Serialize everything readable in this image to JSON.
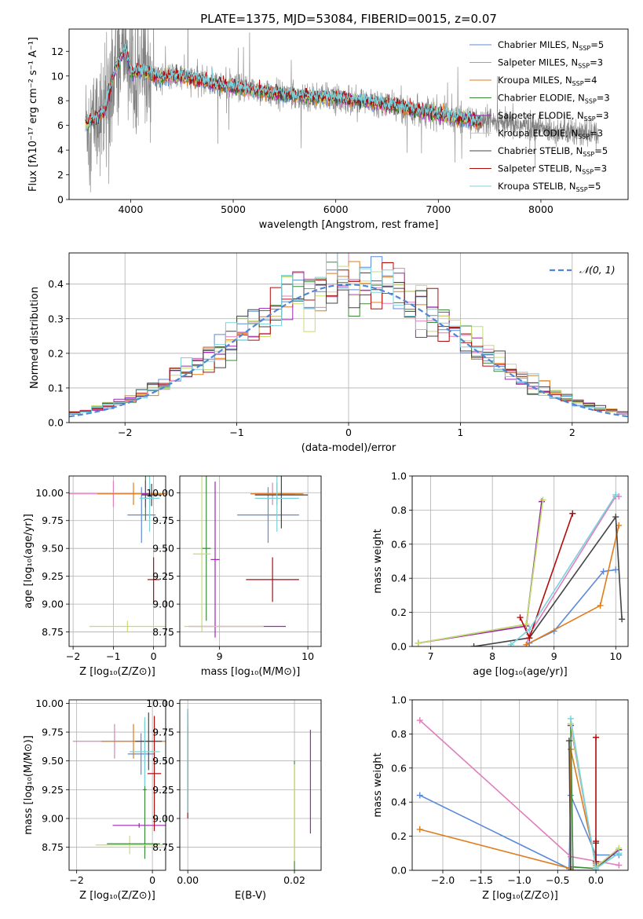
{
  "title": "PLATE=1375, MJD=53084, FIBERID=0015, z=0.07",
  "colors": {
    "chabrier_miles": "#5b8ad8",
    "salpeter_miles": "#e07fbd",
    "kroupa_miles": "#e07b1c",
    "chabrier_elodie": "#3a8a3a",
    "salpeter_elodie": "#9c27b0",
    "kroupa_elodie": "#c8dc6e",
    "chabrier_stelib": "#444444",
    "salpeter_stelib": "#b00c0c",
    "kroupa_stelib": "#79d2dc",
    "data": "#7f7f7f",
    "normal": "#4f86d6"
  },
  "chart_data": [
    {
      "id": "spectrum",
      "type": "line",
      "xlabel": "wavelength [Angstrom, rest frame]",
      "ylabel": "Flux [fλ10⁻¹⁷ erg cm⁻² s⁻¹ A⁻¹]",
      "xlim": [
        3400,
        8850
      ],
      "ylim": [
        0,
        13.8
      ],
      "xticks": [
        4000,
        5000,
        6000,
        7000,
        8000
      ],
      "yticks": [
        0,
        2,
        4,
        6,
        8,
        10,
        12
      ],
      "grid": false,
      "legend": "top-right",
      "legend_entries": [
        {
          "key": "chabrier_miles",
          "label": "Chabrier MILES, N",
          "sub": "SSP",
          "tail": "=5"
        },
        {
          "key": "salpeter_miles",
          "label": "Salpeter MILES, N",
          "sub": "SSP",
          "tail": "=3"
        },
        {
          "key": "kroupa_miles",
          "label": "Kroupa MILES, N",
          "sub": "SSP",
          "tail": "=4"
        },
        {
          "key": "chabrier_elodie",
          "label": "Chabrier ELODIE, N",
          "sub": "SSP",
          "tail": "=3"
        },
        {
          "key": "salpeter_elodie",
          "label": "Salpeter ELODIE, N",
          "sub": "SSP",
          "tail": "=3"
        },
        {
          "key": "kroupa_elodie",
          "label": "Kroupa ELODIE, N",
          "sub": "SSP",
          "tail": "=3"
        },
        {
          "key": "chabrier_stelib",
          "label": "Chabrier STELIB, N",
          "sub": "SSP",
          "tail": "=5"
        },
        {
          "key": "salpeter_stelib",
          "label": "Salpeter STELIB, N",
          "sub": "SSP",
          "tail": "=3"
        },
        {
          "key": "kroupa_stelib",
          "label": "Kroupa STELIB, N",
          "sub": "SSP",
          "tail": "=5"
        }
      ],
      "continuum": {
        "x": [
          3560,
          3650,
          3750,
          3850,
          3950,
          4000,
          4100,
          4300,
          4500,
          4800,
          5000,
          5300,
          5600,
          6000,
          6400,
          6800,
          7000,
          7400,
          7800,
          8200,
          8400,
          8600
        ],
        "y": [
          6.2,
          6.5,
          7.2,
          10.6,
          12.2,
          10.3,
          10.4,
          9.9,
          10.0,
          9.4,
          9.1,
          8.7,
          8.4,
          8.2,
          7.8,
          7.2,
          6.9,
          6.3,
          6.0,
          5.5,
          5.3,
          5.3
        ]
      },
      "model_range": [
        3560,
        7420
      ],
      "data_range": [
        3560,
        8560
      ]
    },
    {
      "id": "residuals",
      "type": "step",
      "xlabel": "(data-model)/error",
      "ylabel": "Normed distribution",
      "xlim": [
        -2.5,
        2.5
      ],
      "ylim": [
        0,
        0.49
      ],
      "xticks": [
        -2,
        -1,
        0,
        1,
        2
      ],
      "yticks": [
        0.0,
        0.1,
        0.2,
        0.3,
        0.4
      ],
      "grid": true,
      "legend": "top-right",
      "legend_entries": [
        {
          "key": "normal",
          "label": "𝒩(0, 1)"
        }
      ],
      "bin_width": 0.1
    },
    {
      "id": "age_vs_Z",
      "type": "errorbar",
      "xlabel": "Z [log₁₀(Z/Z⊙)]",
      "ylabel": "age  [log₁₀(age/yr)]",
      "xlim": [
        -2.1,
        0.3
      ],
      "ylim": [
        8.62,
        10.15
      ],
      "xticks": [
        -2,
        -1,
        0
      ],
      "yticks": [
        8.75,
        9.0,
        9.25,
        9.5,
        9.75,
        10.0
      ],
      "grid": true,
      "points": [
        {
          "key": "chabrier_miles",
          "x": -0.3,
          "xerr": 0.35,
          "y": 9.8,
          "yerr": 0.25
        },
        {
          "key": "salpeter_miles",
          "x": -1.0,
          "xerr": 1.1,
          "y": 9.99,
          "yerr": 0.12
        },
        {
          "key": "kroupa_miles",
          "x": -0.5,
          "xerr": 0.9,
          "y": 9.99,
          "yerr": 0.1
        },
        {
          "key": "chabrier_elodie",
          "x": -0.2,
          "xerr": 0.1,
          "y": 9.95,
          "yerr": 0.2
        },
        {
          "key": "salpeter_elodie",
          "x": -0.2,
          "xerr": 0.1,
          "y": 9.99,
          "yerr": 0.12
        },
        {
          "key": "kroupa_elodie",
          "x": -0.65,
          "xerr": 0.95,
          "y": 8.8,
          "yerr": 0.05
        },
        {
          "key": "chabrier_stelib",
          "x": -0.05,
          "xerr": 0.25,
          "y": 9.98,
          "yerr": 0.1
        },
        {
          "key": "salpeter_stelib",
          "x": 0.0,
          "xerr": 0.15,
          "y": 9.22,
          "yerr": 0.2
        },
        {
          "key": "kroupa_stelib",
          "x": -0.1,
          "xerr": 0.25,
          "y": 9.95,
          "yerr": 0.3
        }
      ]
    },
    {
      "id": "age_vs_mass",
      "type": "errorbar",
      "xlabel": "mass [log₁₀(M/M⊙)]",
      "ylabel": "",
      "xlim": [
        8.55,
        10.15
      ],
      "ylim": [
        8.62,
        10.15
      ],
      "xticks": [
        9,
        10
      ],
      "yticks": [
        8.75,
        9.0,
        9.25,
        9.5,
        9.75,
        10.0
      ],
      "grid": true,
      "points": [
        {
          "key": "chabrier_miles",
          "x": 9.55,
          "xerr": 0.35,
          "y": 9.8,
          "yerr": 0.25
        },
        {
          "key": "salpeter_miles",
          "x": 9.6,
          "xerr": 0.25,
          "y": 9.99,
          "yerr": 0.1
        },
        {
          "key": "kroupa_miles",
          "x": 9.65,
          "xerr": 0.3,
          "y": 9.99,
          "yerr": 0.1
        },
        {
          "key": "chabrier_elodie",
          "x": 8.85,
          "xerr": 0.05,
          "y": 9.5,
          "yerr": 0.65
        },
        {
          "key": "salpeter_elodie",
          "x": 8.95,
          "xerr": 0.05,
          "y": 9.4,
          "yerr": 0.7
        },
        {
          "key": "kroupa_elodie",
          "x": 8.8,
          "xerr": 0.1,
          "y": 9.45,
          "yerr": 0.7
        },
        {
          "key": "chabrier_stelib",
          "x": 9.7,
          "xerr": 0.3,
          "y": 9.98,
          "yerr": 0.3
        },
        {
          "key": "salpeter_stelib",
          "x": 9.6,
          "xerr": 0.3,
          "y": 9.22,
          "yerr": 0.2
        },
        {
          "key": "kroupa_stelib",
          "x": 9.65,
          "xerr": 0.25,
          "y": 9.95,
          "yerr": 0.3
        }
      ],
      "extra_h": [
        {
          "key": "salpeter_elodie",
          "x0": 8.65,
          "x1": 9.75,
          "y": 8.8
        },
        {
          "key": "kroupa_elodie",
          "x0": 8.6,
          "x1": 9.5,
          "y": 8.8
        }
      ]
    },
    {
      "id": "weight_vs_age",
      "type": "line",
      "xlabel": "age  [log₁₀(age/yr)]",
      "ylabel": "mass weight",
      "xlim": [
        6.7,
        10.2
      ],
      "ylim": [
        0,
        1.0
      ],
      "xticks": [
        7,
        8,
        9,
        10
      ],
      "yticks": [
        0.0,
        0.2,
        0.4,
        0.6,
        0.8,
        1.0
      ],
      "grid": true,
      "series": [
        {
          "key": "chabrier_miles",
          "x": [
            8.6,
            9.0,
            9.8,
            10.0
          ],
          "y": [
            0.02,
            0.09,
            0.44,
            0.45
          ]
        },
        {
          "key": "salpeter_miles",
          "x": [
            8.55,
            8.6,
            10.0,
            10.05
          ],
          "y": [
            0.01,
            0.07,
            0.88,
            0.88
          ]
        },
        {
          "key": "kroupa_miles",
          "x": [
            8.55,
            9.75,
            10.05
          ],
          "y": [
            0.01,
            0.24,
            0.71
          ]
        },
        {
          "key": "chabrier_elodie",
          "x": [
            6.8,
            8.55,
            8.8
          ],
          "y": [
            0.02,
            0.13,
            0.85
          ]
        },
        {
          "key": "salpeter_elodie",
          "x": [
            6.8,
            8.55,
            8.8
          ],
          "y": [
            0.02,
            0.12,
            0.85
          ]
        },
        {
          "key": "kroupa_elodie",
          "x": [
            6.8,
            8.55,
            8.82
          ],
          "y": [
            0.02,
            0.13,
            0.86
          ]
        },
        {
          "key": "chabrier_stelib",
          "x": [
            7.7,
            8.6,
            10.0,
            10.1
          ],
          "y": [
            0.0,
            0.05,
            0.76,
            0.16
          ]
        },
        {
          "key": "salpeter_stelib",
          "x": [
            8.45,
            8.6,
            9.3
          ],
          "y": [
            0.17,
            0.05,
            0.78
          ]
        },
        {
          "key": "kroupa_stelib",
          "x": [
            8.3,
            8.6,
            10.0
          ],
          "y": [
            0.01,
            0.1,
            0.89
          ]
        }
      ]
    },
    {
      "id": "mass_vs_Z",
      "type": "errorbar",
      "xlabel": "Z [log₁₀(Z/Z⊙)]",
      "ylabel": "mass [log₁₀(M/M⊙)]",
      "xlim": [
        -2.2,
        0.35
      ],
      "ylim": [
        8.55,
        10.03
      ],
      "xticks": [
        -2,
        0
      ],
      "yticks": [
        8.75,
        9.0,
        9.25,
        9.5,
        9.75,
        10.0
      ],
      "grid": true,
      "points": [
        {
          "key": "chabrier_miles",
          "x": -0.3,
          "xerr": 0.35,
          "y": 9.56,
          "yerr": 0.18
        },
        {
          "key": "salpeter_miles",
          "x": -1.0,
          "xerr": 1.1,
          "y": 9.67,
          "yerr": 0.15
        },
        {
          "key": "kroupa_miles",
          "x": -0.5,
          "xerr": 0.85,
          "y": 9.67,
          "yerr": 0.15
        },
        {
          "key": "chabrier_elodie",
          "x": -0.2,
          "xerr": 0.05,
          "y": 9.25,
          "yerr": 0.6
        },
        {
          "key": "salpeter_elodie",
          "x": -0.35,
          "xerr": 0.7,
          "y": 8.94,
          "yerr": 0.02
        },
        {
          "key": "kroupa_elodie",
          "x": -0.6,
          "xerr": 0.9,
          "y": 8.77,
          "yerr": 0.08
        },
        {
          "key": "chabrier_stelib",
          "x": -0.1,
          "xerr": 0.35,
          "y": 9.67,
          "yerr": 0.25
        },
        {
          "key": "salpeter_stelib",
          "x": 0.05,
          "xerr": 0.18,
          "y": 9.39,
          "yerr": 0.5
        },
        {
          "key": "kroupa_stelib",
          "x": -0.2,
          "xerr": 0.4,
          "y": 9.58,
          "yerr": 0.3
        }
      ],
      "extra_h": [
        {
          "key": "chabrier_elodie",
          "x0": -1.2,
          "x1": 0.2,
          "y": 8.78
        }
      ]
    },
    {
      "id": "mass_vs_ebv",
      "type": "errorbar",
      "xlabel": "E(B-V)",
      "ylabel": "",
      "xlim": [
        -0.0015,
        0.025
      ],
      "ylim": [
        8.55,
        10.03
      ],
      "xticks": [
        0.0,
        0.02
      ],
      "yticks": [
        8.75,
        9.0,
        9.25,
        9.5,
        9.75,
        10.0
      ],
      "grid": true,
      "points": [
        {
          "key": "chabrier_miles",
          "x": 0.0,
          "xerr": 0,
          "y": 9.56,
          "yerr": 0.35
        },
        {
          "key": "salpeter_miles",
          "x": 0.0,
          "xerr": 0,
          "y": 9.6,
          "yerr": 0.3
        },
        {
          "key": "kroupa_miles",
          "x": 0.0,
          "xerr": 0,
          "y": 9.55,
          "yerr": 0.3
        },
        {
          "key": "chabrier_elodie",
          "x": 0.02,
          "xerr": 0,
          "y": 9.0,
          "yerr": 0.5
        },
        {
          "key": "salpeter_elodie",
          "x": 0.023,
          "xerr": 0,
          "y": 9.32,
          "yerr": 0.45
        },
        {
          "key": "kroupa_elodie",
          "x": 0.02,
          "xerr": 0,
          "y": 9.05,
          "yerr": 0.42
        },
        {
          "key": "chabrier_stelib",
          "x": 0.0,
          "xerr": 0,
          "y": 9.5,
          "yerr": 0.45
        },
        {
          "key": "salpeter_stelib",
          "x": 0.0,
          "xerr": 0,
          "y": 9.4,
          "yerr": 0.4
        },
        {
          "key": "kroupa_stelib",
          "x": 0.0,
          "xerr": 0,
          "y": 9.5,
          "yerr": 0.45
        }
      ]
    },
    {
      "id": "weight_vs_Z",
      "type": "line",
      "xlabel": "Z [log₁₀(Z/Z⊙)]",
      "ylabel": "mass weight",
      "xlim": [
        -2.4,
        0.42
      ],
      "ylim": [
        0,
        1.0
      ],
      "xticks": [
        -2.0,
        -1.5,
        -1.0,
        -0.5,
        0.0
      ],
      "yticks": [
        0.0,
        0.2,
        0.4,
        0.6,
        0.8,
        1.0
      ],
      "grid": true,
      "series": [
        {
          "key": "chabrier_miles",
          "x": [
            -2.3,
            -0.35,
            -0.33,
            0.0,
            0.3
          ],
          "y": [
            0.44,
            0.01,
            0.44,
            0.09,
            0.09
          ]
        },
        {
          "key": "salpeter_miles",
          "x": [
            -2.3,
            -0.33,
            0.3
          ],
          "y": [
            0.88,
            0.08,
            0.03
          ]
        },
        {
          "key": "kroupa_miles",
          "x": [
            -2.3,
            -0.33,
            -0.33,
            0.0,
            0.0
          ],
          "y": [
            0.24,
            0.01,
            0.71,
            0.04,
            0.03
          ]
        },
        {
          "key": "chabrier_elodie",
          "x": [
            -0.33,
            -0.3,
            0.0,
            0.3
          ],
          "y": [
            0.85,
            0.02,
            0.01,
            0.12
          ]
        },
        {
          "key": "salpeter_elodie",
          "x": [
            -0.33,
            0.0,
            0.3
          ],
          "y": [
            0.85,
            0.02,
            0.12
          ]
        },
        {
          "key": "kroupa_elodie",
          "x": [
            -0.33,
            0.0,
            0.3
          ],
          "y": [
            0.86,
            0.02,
            0.13
          ]
        },
        {
          "key": "chabrier_stelib",
          "x": [
            -0.35,
            -0.33,
            0.0,
            0.0
          ],
          "y": [
            0.76,
            0.0,
            0.0,
            0.16
          ]
        },
        {
          "key": "salpeter_stelib",
          "x": [
            0.0,
            0.0,
            0.0
          ],
          "y": [
            0.78,
            0.05,
            0.17
          ]
        },
        {
          "key": "kroupa_stelib",
          "x": [
            -0.33,
            0.0,
            0.3
          ],
          "y": [
            0.89,
            0.01,
            0.1
          ]
        }
      ]
    }
  ]
}
